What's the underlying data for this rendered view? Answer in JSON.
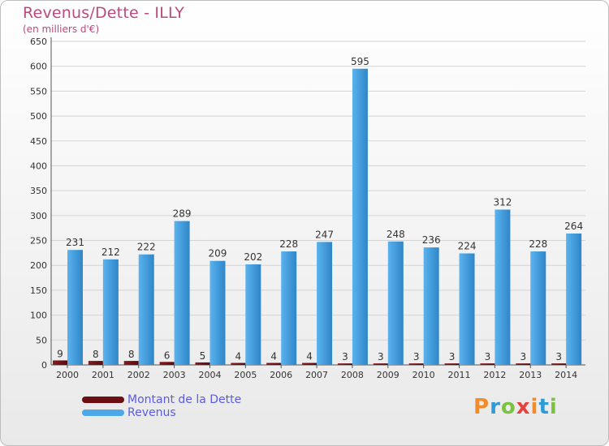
{
  "title": "Revenus/Dette - ILLY",
  "subtitle": "(en milliers d'€)",
  "brand": {
    "text": "Proxiti",
    "colors": [
      "#f28c28",
      "#2e9bd6",
      "#7cc242",
      "#e8423c"
    ]
  },
  "colors": {
    "debt": "#6b0f12",
    "revenue": "#4ca8e8",
    "revenue_dark": "#2e83c6",
    "title": "#b84a7d",
    "legend_text": "#5b5be0"
  },
  "chart_data": {
    "type": "bar",
    "categories": [
      "2000",
      "2001",
      "2002",
      "2003",
      "2004",
      "2005",
      "2006",
      "2007",
      "2008",
      "2009",
      "2010",
      "2011",
      "2012",
      "2013",
      "2014"
    ],
    "series": [
      {
        "name": "Montant de la Dette",
        "values": [
          9,
          8,
          8,
          6,
          5,
          4,
          4,
          4,
          3,
          3,
          3,
          3,
          3,
          3,
          3
        ]
      },
      {
        "name": "Revenus",
        "values": [
          231,
          212,
          222,
          289,
          209,
          202,
          228,
          247,
          595,
          248,
          236,
          224,
          312,
          228,
          264
        ]
      }
    ],
    "yticks": [
      0,
      50,
      100,
      150,
      200,
      250,
      300,
      350,
      400,
      450,
      500,
      550,
      600,
      650
    ],
    "ylim": [
      0,
      650
    ],
    "grid": true,
    "legend_position": "bottom-left"
  }
}
